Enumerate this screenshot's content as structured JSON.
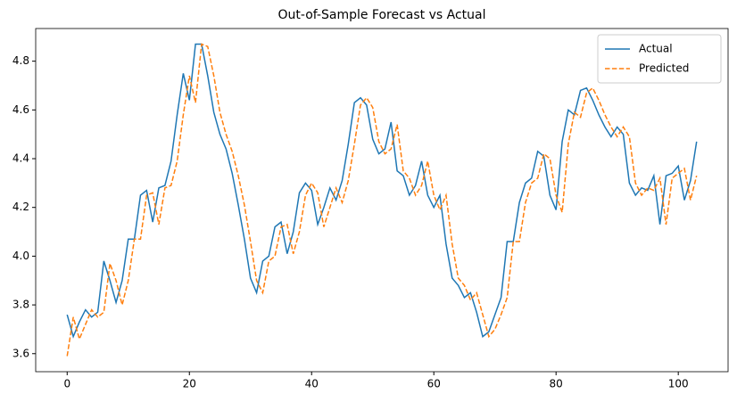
{
  "chart_data": {
    "type": "line",
    "title": "Out-of-Sample Forecast vs Actual",
    "x": [
      0,
      1,
      2,
      3,
      4,
      5,
      6,
      7,
      8,
      9,
      10,
      11,
      12,
      13,
      14,
      15,
      16,
      17,
      18,
      19,
      20,
      21,
      22,
      23,
      24,
      25,
      26,
      27,
      28,
      29,
      30,
      31,
      32,
      33,
      34,
      35,
      36,
      37,
      38,
      39,
      40,
      41,
      42,
      43,
      44,
      45,
      46,
      47,
      48,
      49,
      50,
      51,
      52,
      53,
      54,
      55,
      56,
      57,
      58,
      59,
      60,
      61,
      62,
      63,
      64,
      65,
      66,
      67,
      68,
      69,
      70,
      71,
      72,
      73,
      74,
      75,
      76,
      77,
      78,
      79,
      80,
      81,
      82,
      83,
      84,
      85,
      86,
      87,
      88,
      89,
      90,
      91,
      92,
      93,
      94,
      95,
      96,
      97,
      98,
      99,
      100,
      101,
      102,
      103
    ],
    "series": [
      {
        "name": "Actual",
        "color": "#1f77b4",
        "dash": false,
        "values": [
          3.76,
          3.67,
          3.73,
          3.78,
          3.75,
          3.77,
          3.98,
          3.9,
          3.81,
          3.9,
          4.07,
          4.07,
          4.25,
          4.27,
          4.14,
          4.28,
          4.29,
          4.39,
          4.58,
          4.75,
          4.64,
          4.87,
          4.87,
          4.74,
          4.59,
          4.5,
          4.44,
          4.34,
          4.21,
          4.07,
          3.91,
          3.85,
          3.98,
          4.0,
          4.12,
          4.14,
          4.01,
          4.1,
          4.26,
          4.3,
          4.27,
          4.13,
          4.2,
          4.28,
          4.23,
          4.31,
          4.46,
          4.63,
          4.65,
          4.62,
          4.48,
          4.42,
          4.44,
          4.55,
          4.35,
          4.33,
          4.25,
          4.29,
          4.39,
          4.25,
          4.2,
          4.25,
          4.05,
          3.91,
          3.88,
          3.83,
          3.85,
          3.77,
          3.67,
          3.69,
          3.76,
          3.83,
          4.06,
          4.06,
          4.22,
          4.3,
          4.32,
          4.43,
          4.41,
          4.25,
          4.19,
          4.47,
          4.6,
          4.58,
          4.68,
          4.69,
          4.64,
          4.58,
          4.53,
          4.49,
          4.53,
          4.5,
          4.3,
          4.25,
          4.28,
          4.27,
          4.33,
          4.13,
          4.33,
          4.34,
          4.37,
          4.23,
          4.31,
          4.47
        ]
      },
      {
        "name": "Predicted",
        "color": "#ff7f0e",
        "dash": true,
        "values": [
          3.59,
          3.75,
          3.66,
          3.72,
          3.78,
          3.75,
          3.77,
          3.97,
          3.9,
          3.8,
          3.9,
          4.07,
          4.07,
          4.25,
          4.26,
          4.13,
          4.28,
          4.29,
          4.39,
          4.58,
          4.74,
          4.63,
          4.87,
          4.86,
          4.74,
          4.59,
          4.5,
          4.43,
          4.33,
          4.21,
          4.06,
          3.9,
          3.85,
          3.98,
          4.0,
          4.12,
          4.13,
          4.01,
          4.1,
          4.25,
          4.3,
          4.26,
          4.12,
          4.2,
          4.28,
          4.22,
          4.31,
          4.46,
          4.62,
          4.65,
          4.61,
          4.47,
          4.42,
          4.44,
          4.54,
          4.35,
          4.32,
          4.25,
          4.29,
          4.39,
          4.25,
          4.19,
          4.25,
          4.05,
          3.91,
          3.88,
          3.82,
          3.85,
          3.76,
          3.67,
          3.7,
          3.76,
          3.83,
          4.06,
          4.06,
          4.22,
          4.3,
          4.32,
          4.42,
          4.4,
          4.25,
          4.18,
          4.46,
          4.59,
          4.57,
          4.67,
          4.69,
          4.64,
          4.58,
          4.53,
          4.49,
          4.53,
          4.49,
          4.3,
          4.25,
          4.28,
          4.27,
          4.32,
          4.13,
          4.32,
          4.34,
          4.36,
          4.23,
          4.33
        ]
      }
    ],
    "xlim": [
      -5.15,
      108.15
    ],
    "xticks": [
      0,
      20,
      40,
      60,
      80,
      100
    ],
    "ylim": [
      3.526,
      4.934
    ],
    "yticks": [
      3.6,
      3.8,
      {
        "value": 4,
        "label": "4.0"
      },
      4.2,
      4.4,
      4.6,
      4.8
    ],
    "legend": "upper right",
    "grid": false
  }
}
